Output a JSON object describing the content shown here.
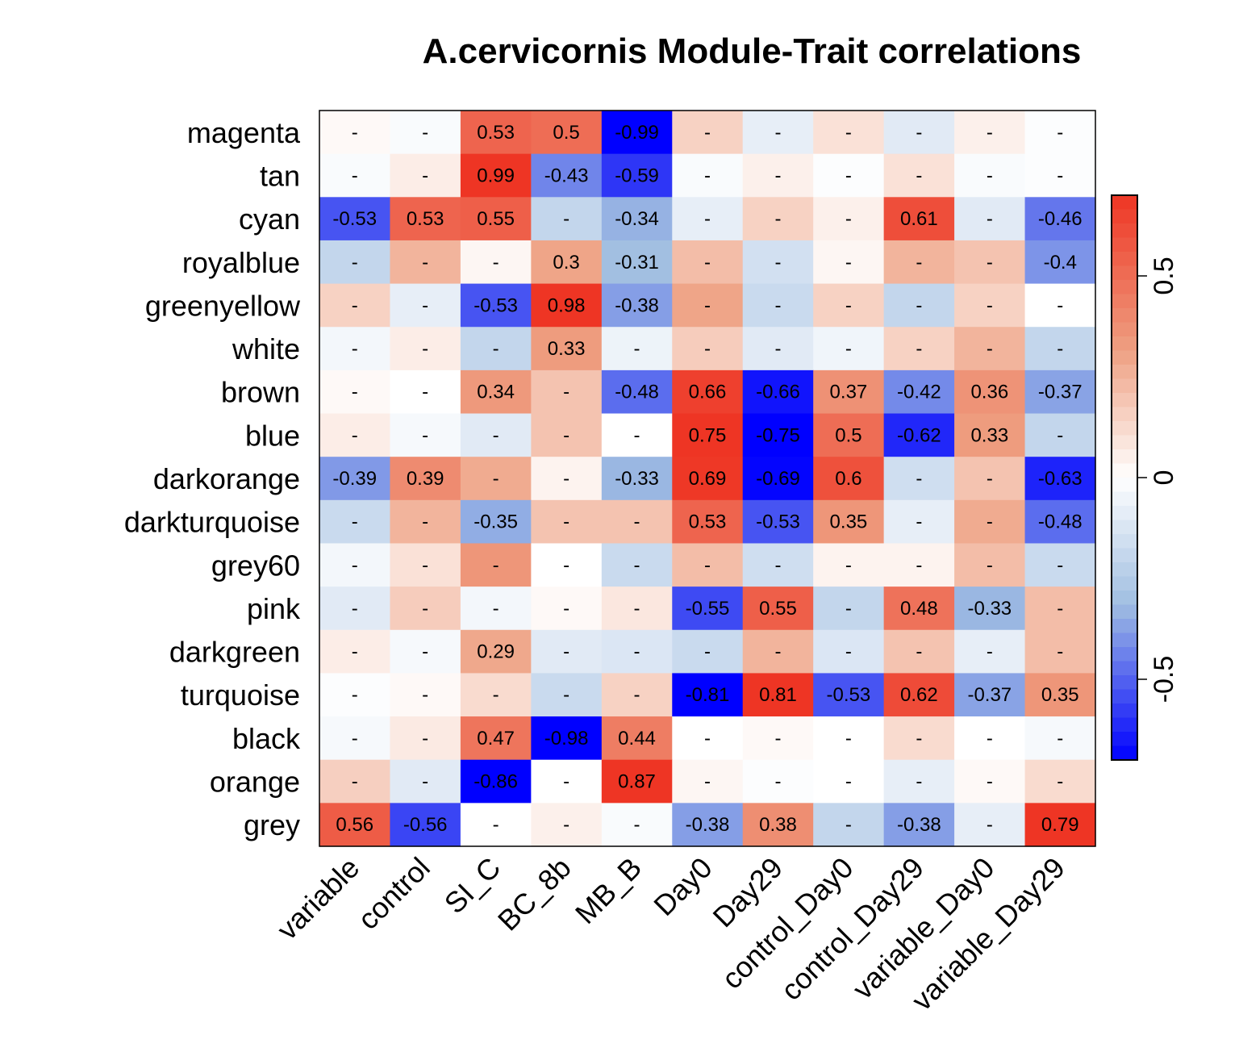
{
  "chart_data": {
    "type": "heatmap",
    "title": "A.cervicornis Module-Trait correlations",
    "rows": [
      "magenta",
      "tan",
      "cyan",
      "royalblue",
      "greenyellow",
      "white",
      "brown",
      "blue",
      "darkorange",
      "darkturquoise",
      "grey60",
      "pink",
      "darkgreen",
      "turquoise",
      "black",
      "orange",
      "grey"
    ],
    "columns": [
      "variable",
      "control",
      "SI_C",
      "BC_8b",
      "MB_B",
      "Day0",
      "Day29",
      "control_Day0",
      "control_Day29",
      "variable_Day0",
      "variable_Day29"
    ],
    "values": [
      [
        0.02,
        -0.02,
        0.53,
        0.5,
        -0.99,
        0.15,
        -0.08,
        0.1,
        -0.1,
        0.05,
        -0.01
      ],
      [
        -0.02,
        0.06,
        0.99,
        -0.43,
        -0.59,
        -0.02,
        0.05,
        -0.01,
        0.1,
        -0.02,
        -0.01
      ],
      [
        -0.53,
        0.53,
        0.55,
        -0.2,
        -0.34,
        -0.08,
        0.15,
        0.05,
        0.61,
        -0.1,
        -0.46
      ],
      [
        -0.2,
        0.25,
        0.03,
        0.3,
        -0.31,
        0.22,
        -0.15,
        0.03,
        0.25,
        0.2,
        -0.4
      ],
      [
        0.15,
        -0.08,
        -0.53,
        0.98,
        -0.38,
        0.3,
        -0.18,
        0.15,
        -0.2,
        0.15,
        0.0
      ],
      [
        -0.04,
        0.06,
        -0.2,
        0.33,
        -0.06,
        0.17,
        -0.1,
        -0.05,
        0.15,
        0.25,
        -0.2
      ],
      [
        0.02,
        0.0,
        0.34,
        0.2,
        -0.48,
        0.66,
        -0.66,
        0.37,
        -0.42,
        0.36,
        -0.37
      ],
      [
        0.06,
        -0.03,
        -0.1,
        0.2,
        0.0,
        0.75,
        -0.75,
        0.5,
        -0.62,
        0.33,
        -0.2
      ],
      [
        -0.39,
        0.39,
        0.28,
        0.04,
        -0.33,
        0.69,
        -0.69,
        0.6,
        -0.16,
        0.2,
        -0.63
      ],
      [
        -0.18,
        0.25,
        -0.35,
        0.2,
        0.2,
        0.53,
        -0.53,
        0.35,
        -0.08,
        0.28,
        -0.48
      ],
      [
        -0.04,
        0.1,
        0.35,
        0.0,
        -0.18,
        0.22,
        -0.16,
        0.04,
        0.04,
        0.22,
        -0.18
      ],
      [
        -0.1,
        0.17,
        -0.04,
        0.02,
        0.08,
        -0.55,
        0.55,
        -0.2,
        0.48,
        -0.33,
        0.22
      ],
      [
        0.06,
        -0.03,
        0.29,
        -0.1,
        -0.12,
        -0.18,
        0.25,
        -0.12,
        0.2,
        -0.08,
        0.22
      ],
      [
        -0.01,
        0.02,
        0.12,
        -0.18,
        0.15,
        -0.81,
        0.81,
        -0.53,
        0.62,
        -0.37,
        0.35
      ],
      [
        -0.03,
        0.07,
        0.47,
        -0.98,
        0.44,
        0.0,
        0.02,
        0.0,
        0.12,
        0.0,
        -0.03
      ],
      [
        0.16,
        -0.1,
        -0.86,
        0.0,
        0.87,
        0.03,
        -0.01,
        0.0,
        -0.08,
        0.02,
        0.12
      ],
      [
        0.56,
        -0.56,
        0.0,
        0.05,
        -0.02,
        -0.38,
        0.38,
        -0.2,
        -0.38,
        -0.08,
        0.79
      ]
    ],
    "labels": [
      [
        "-",
        "-",
        "0.53",
        "0.5",
        "-0.99",
        "-",
        "-",
        "-",
        "-",
        "-",
        "-"
      ],
      [
        "-",
        "-",
        "0.99",
        "-0.43",
        "-0.59",
        "-",
        "-",
        "-",
        "-",
        "-",
        "-"
      ],
      [
        "-0.53",
        "0.53",
        "0.55",
        "-",
        "-0.34",
        "-",
        "-",
        "-",
        "0.61",
        "-",
        "-0.46"
      ],
      [
        "-",
        "-",
        "-",
        "0.3",
        "-0.31",
        "-",
        "-",
        "-",
        "-",
        "-",
        "-0.4"
      ],
      [
        "-",
        "-",
        "-0.53",
        "0.98",
        "-0.38",
        "-",
        "-",
        "-",
        "-",
        "-",
        "-"
      ],
      [
        "-",
        "-",
        "-",
        "0.33",
        "-",
        "-",
        "-",
        "-",
        "-",
        "-",
        "-"
      ],
      [
        "-",
        "-",
        "0.34",
        "-",
        "-0.48",
        "0.66",
        "-0.66",
        "0.37",
        "-0.42",
        "0.36",
        "-0.37"
      ],
      [
        "-",
        "-",
        "-",
        "-",
        "-",
        "0.75",
        "-0.75",
        "0.5",
        "-0.62",
        "0.33",
        "-"
      ],
      [
        "-0.39",
        "0.39",
        "-",
        "-",
        "-0.33",
        "0.69",
        "-0.69",
        "0.6",
        "-",
        "-",
        "-0.63"
      ],
      [
        "-",
        "-",
        "-0.35",
        "-",
        "-",
        "0.53",
        "-0.53",
        "0.35",
        "-",
        "-",
        "-0.48"
      ],
      [
        "-",
        "-",
        "-",
        "-",
        "-",
        "-",
        "-",
        "-",
        "-",
        "-",
        "-"
      ],
      [
        "-",
        "-",
        "-",
        "-",
        "-",
        "-0.55",
        "0.55",
        "-",
        "0.48",
        "-0.33",
        "-"
      ],
      [
        "-",
        "-",
        "0.29",
        "-",
        "-",
        "-",
        "-",
        "-",
        "-",
        "-",
        "-"
      ],
      [
        "-",
        "-",
        "-",
        "-",
        "-",
        "-0.81",
        "0.81",
        "-0.53",
        "0.62",
        "-0.37",
        "0.35"
      ],
      [
        "-",
        "-",
        "0.47",
        "-0.98",
        "0.44",
        "-",
        "-",
        "-",
        "-",
        "-",
        "-"
      ],
      [
        "-",
        "-",
        "-0.86",
        "-",
        "0.87",
        "-",
        "-",
        "-",
        "-",
        "-",
        "-"
      ],
      [
        "0.56",
        "-0.56",
        "-",
        "-",
        "-",
        "-0.38",
        "0.38",
        "-",
        "-0.38",
        "-",
        "0.79"
      ]
    ],
    "colorbar": {
      "range": [
        -0.7,
        0.7
      ],
      "ticks": [
        -0.5,
        0,
        0.5
      ],
      "tick_labels": [
        "-0.5",
        "0",
        "0.5"
      ]
    },
    "colors": {
      "negative": "#0000ff",
      "neutral": "#ffffff",
      "positive": "#ee3524"
    }
  }
}
